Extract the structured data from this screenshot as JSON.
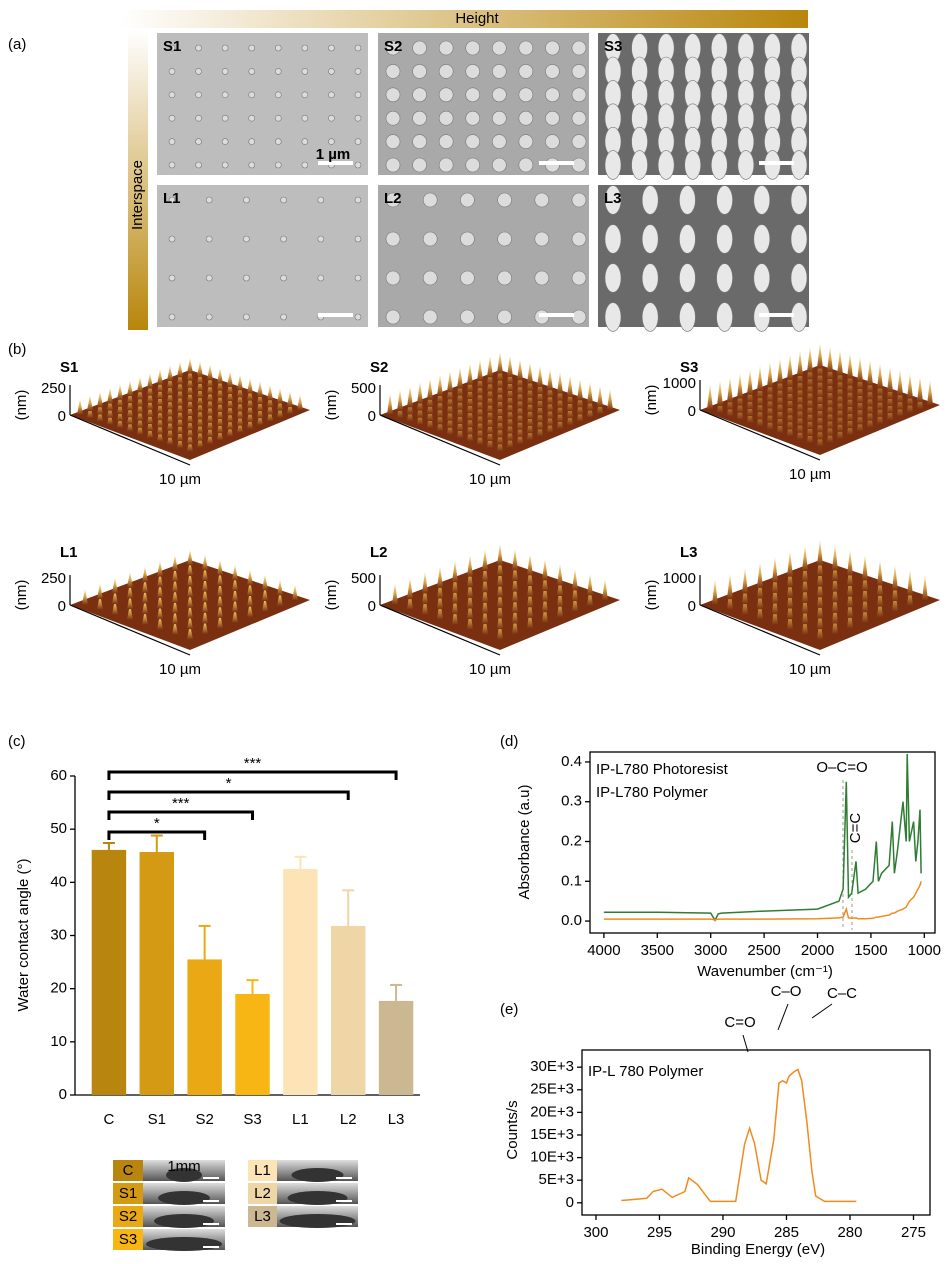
{
  "panel_labels": [
    "(a)",
    "(b)",
    "(c)",
    "(d)",
    "(e)"
  ],
  "sem": {
    "height_label": "Height",
    "interspace_label": "Interspace",
    "images": [
      "S1",
      "S2",
      "S3",
      "L1",
      "L2",
      "L3"
    ],
    "scale_label": "1 µm"
  },
  "afm": {
    "images": [
      {
        "label": "S1",
        "z_max": "250",
        "z_min": "0",
        "z_unit": "(nm)",
        "x_label": "10 µm"
      },
      {
        "label": "S2",
        "z_max": "500",
        "z_min": "0",
        "z_unit": "(nm)",
        "x_label": "10 µm"
      },
      {
        "label": "S3",
        "z_max": "1000",
        "z_min": "0",
        "z_unit": "(nm)",
        "x_label": "10 µm"
      },
      {
        "label": "L1",
        "z_max": "250",
        "z_min": "0",
        "z_unit": "(nm)",
        "x_label": "10 µm"
      },
      {
        "label": "L2",
        "z_max": "500",
        "z_min": "0",
        "z_unit": "(nm)",
        "x_label": "10 µm"
      },
      {
        "label": "L3",
        "z_max": "1000",
        "z_min": "0",
        "z_unit": "(nm)",
        "x_label": "10 µm"
      }
    ]
  },
  "droplets": {
    "left": [
      "C",
      "S1",
      "S2",
      "S3"
    ],
    "right": [
      "L1",
      "L2",
      "L3"
    ],
    "scale_label": "1mm"
  },
  "chart_data": [
    {
      "type": "bar",
      "ylabel": "Water contact angle (°)",
      "categories": [
        "C",
        "S1",
        "S2",
        "S3",
        "L1",
        "L2",
        "L3"
      ],
      "values": [
        46.1,
        45.7,
        25.5,
        19,
        42.5,
        31.8,
        17.7
      ],
      "errors": [
        1.3,
        3.1,
        6.3,
        2.6,
        2.3,
        6.7,
        3
      ],
      "colors": [
        "#b8860e",
        "#d49a14",
        "#eaa815",
        "#f8b614",
        "#fde4b6",
        "#efd6a7",
        "#cbb893"
      ],
      "ylim": [
        0,
        60
      ],
      "yticks": [
        0,
        10,
        20,
        30,
        40,
        50,
        60
      ],
      "significance": [
        {
          "label": "***",
          "from": "C",
          "to": "L3"
        },
        {
          "label": "*",
          "from": "C",
          "to": "L2"
        },
        {
          "label": "***",
          "from": "C",
          "to": "S3"
        },
        {
          "label": "*",
          "from": "C",
          "to": "S2"
        }
      ]
    },
    {
      "type": "line",
      "xlabel": "Wavenumber (cm⁻¹)",
      "ylabel": "Absorbance (a.u)",
      "x": [
        4000,
        3500,
        3000,
        2960,
        2930,
        2900,
        2500,
        2000,
        1800,
        1760,
        1730,
        1710,
        1680,
        1640,
        1620,
        1550,
        1480,
        1450,
        1430,
        1400,
        1330,
        1300,
        1280,
        1250,
        1200,
        1170,
        1160,
        1140,
        1100,
        1080,
        1060,
        1040,
        1030
      ],
      "series": [
        {
          "name": "IP-L780 Photoresist",
          "color": "#2e7d32",
          "values": [
            0.022,
            0.022,
            0.02,
            0.002,
            0.018,
            0.02,
            0.025,
            0.03,
            0.05,
            0.08,
            0.35,
            0.06,
            0.07,
            0.15,
            0.07,
            0.08,
            0.1,
            0.2,
            0.1,
            0.12,
            0.14,
            0.25,
            0.12,
            0.18,
            0.3,
            0.2,
            0.42,
            0.2,
            0.25,
            0.15,
            0.2,
            0.28,
            0.12
          ]
        },
        {
          "name": "IP-L780 Polymer",
          "color": "#f28a1e",
          "values": [
            0.005,
            0.005,
            0.005,
            0.003,
            0.005,
            0.005,
            0.005,
            0.006,
            0.008,
            0.01,
            0.03,
            0.008,
            0.007,
            0.008,
            0.006,
            0.006,
            0.007,
            0.01,
            0.01,
            0.012,
            0.015,
            0.02,
            0.02,
            0.025,
            0.03,
            0.035,
            0.04,
            0.05,
            0.06,
            0.07,
            0.08,
            0.09,
            0.1
          ]
        }
      ],
      "xlim": [
        4130,
        900
      ],
      "xticks": [
        4000,
        3500,
        3000,
        2500,
        2000,
        1500,
        1000
      ],
      "ylim": [
        -0.03,
        0.425
      ],
      "yticks": [
        {
          "value": 0,
          "label": "0.0"
        },
        0.1,
        0.2,
        0.3,
        0.4
      ],
      "annotations": [
        "O–C=O",
        "C=C"
      ]
    },
    {
      "type": "line",
      "xlabel": "Binding Energy (eV)",
      "ylabel": "Counts/s",
      "x": [
        298,
        296,
        295.5,
        294.8,
        294,
        293,
        292.7,
        292,
        291,
        289,
        288.3,
        287.9,
        287.5,
        287,
        286.6,
        286,
        285.6,
        285.3,
        285,
        284.8,
        284.4,
        284.1,
        283.8,
        283.4,
        283,
        282.7,
        282,
        279.5
      ],
      "series": [
        {
          "name": "IP-L 780 Polymer",
          "color": "#f28a1e",
          "values": [
            500,
            1000,
            2500,
            3000,
            1200,
            2500,
            5500,
            4000,
            300,
            300,
            13000,
            16500,
            13000,
            5000,
            4200,
            14000,
            26500,
            27000,
            26500,
            28000,
            29000,
            29500,
            27000,
            18000,
            7000,
            1500,
            300,
            300
          ]
        }
      ],
      "xlim": [
        301.1,
        273.7
      ],
      "xticks": [
        300,
        295,
        290,
        285,
        280,
        275
      ],
      "ylim": [
        -2700,
        33800
      ],
      "yticks": [
        0,
        {
          "value": 5000,
          "label": "5E+3"
        },
        {
          "value": 10000,
          "label": "10E+3"
        },
        {
          "value": 15000,
          "label": "15E+3"
        },
        {
          "value": 20000,
          "label": "20E+3"
        },
        {
          "value": 25000,
          "label": "25E+3"
        },
        {
          "value": 30000,
          "label": "30E+3"
        }
      ],
      "annotations": [
        "C=O",
        "C–O",
        "C–C"
      ]
    }
  ]
}
